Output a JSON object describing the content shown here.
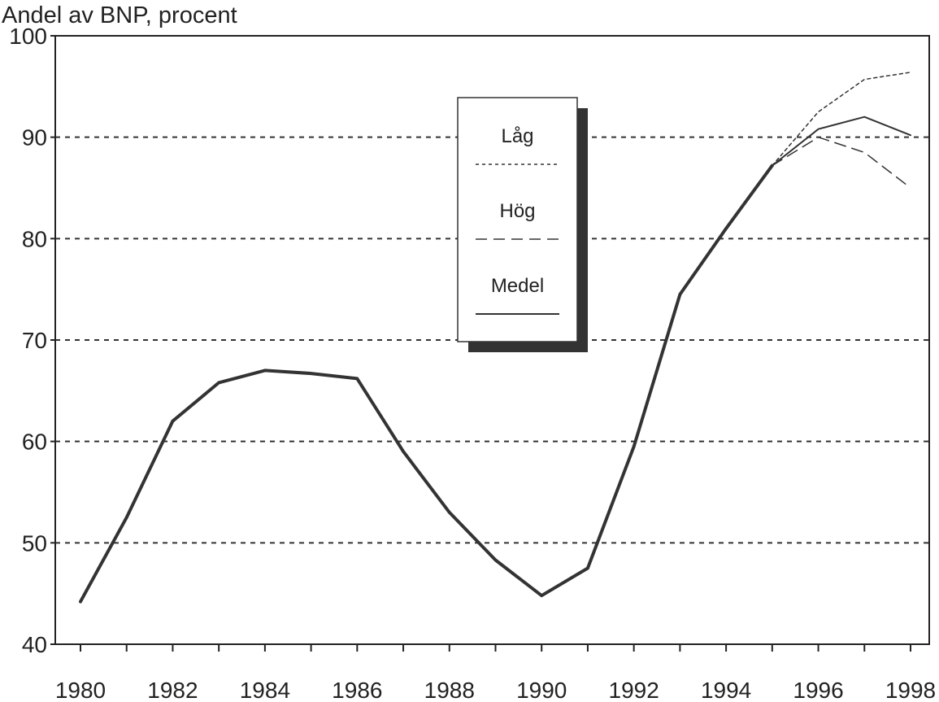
{
  "chart_data": {
    "type": "line",
    "ylabel": "Andel av BNP, procent",
    "ylim": [
      40,
      100
    ],
    "yticks": [
      40,
      50,
      60,
      70,
      80,
      90,
      100
    ],
    "xlim": [
      1980,
      1998
    ],
    "xticks": [
      1980,
      1982,
      1984,
      1986,
      1988,
      1990,
      1992,
      1994,
      1996,
      1998
    ],
    "grid": "horizontal dashed",
    "legend_position": "center-top",
    "history": {
      "x": [
        1980,
        1981,
        1982,
        1983,
        1984,
        1985,
        1986,
        1987,
        1988,
        1989,
        1990,
        1991,
        1992,
        1993,
        1994,
        1995
      ],
      "y": [
        44.2,
        52.5,
        62.0,
        65.8,
        67.0,
        66.7,
        66.2,
        59.0,
        53.0,
        48.3,
        44.8,
        47.5,
        59.5,
        74.5,
        81.0,
        87.2
      ]
    },
    "series": [
      {
        "name": "Låg",
        "style": "dotted",
        "x": [
          1995,
          1996,
          1997,
          1998
        ],
        "y": [
          87.2,
          92.5,
          95.7,
          96.4
        ]
      },
      {
        "name": "Hög",
        "style": "dashed",
        "x": [
          1995,
          1996,
          1997,
          1998
        ],
        "y": [
          87.2,
          90.0,
          88.5,
          85.0
        ]
      },
      {
        "name": "Medel",
        "style": "solid",
        "x": [
          1995,
          1996,
          1997,
          1998
        ],
        "y": [
          87.2,
          90.8,
          92.0,
          90.2
        ]
      }
    ],
    "colors": {
      "line": "#333333",
      "grid": "#333333",
      "axis": "#222222"
    }
  }
}
